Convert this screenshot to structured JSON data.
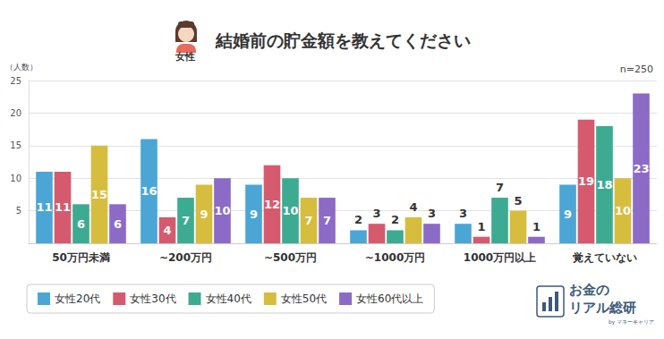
{
  "chart_data": {
    "type": "bar",
    "title": "結婚前の貯金額を教えてください",
    "ylabel": "（人数）",
    "annotations": [
      "女性",
      "n=250",
      "お金の",
      "リアル総研",
      "by マネーキャリア"
    ],
    "categories": [
      "50万円未満",
      "~200万円",
      "~500万円",
      "~1000万円",
      "1000万円以上",
      "覚えていない"
    ],
    "series": [
      {
        "name": "女性20代",
        "color": "#4ba6d6",
        "values": [
          11,
          16,
          9,
          2,
          3,
          9
        ]
      },
      {
        "name": "女性30代",
        "color": "#d65a6e",
        "values": [
          11,
          4,
          12,
          3,
          1,
          19
        ]
      },
      {
        "name": "女性40代",
        "color": "#3dab92",
        "values": [
          6,
          7,
          10,
          2,
          7,
          18
        ]
      },
      {
        "name": "女性50代",
        "color": "#d7bd3e",
        "values": [
          15,
          9,
          7,
          4,
          5,
          10
        ]
      },
      {
        "name": "女性60代以上",
        "color": "#8c6bc7",
        "values": [
          6,
          10,
          7,
          3,
          1,
          23
        ]
      }
    ],
    "ylim": [
      0,
      25
    ],
    "yticks": [
      5,
      10,
      15,
      20,
      25
    ],
    "grid": true,
    "legend": "bottom-left",
    "data_labels": true
  }
}
